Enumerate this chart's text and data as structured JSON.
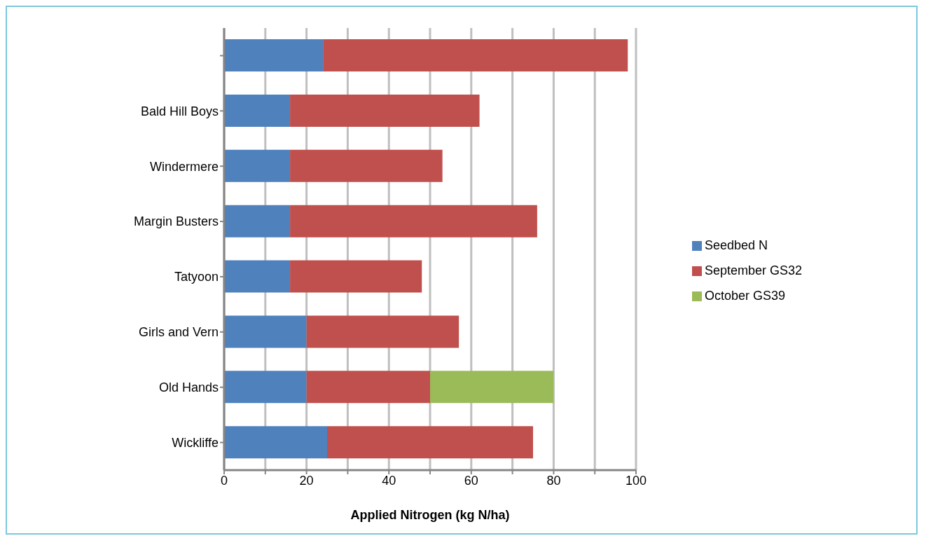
{
  "chart_data": {
    "type": "bar",
    "orientation": "horizontal",
    "stacked": true,
    "xlabel": "Applied Nitrogen (kg N/ha)",
    "categories": [
      null,
      "Bald Hill Boys",
      "Windermere",
      "Margin Busters",
      "Tatyoon",
      "Girls and Vern",
      "Old Hands",
      "Wickliffe"
    ],
    "series": [
      {
        "name": "Seedbed N",
        "color": "#4f81bd",
        "values": [
          24,
          16,
          16,
          16,
          16,
          20,
          20,
          25
        ]
      },
      {
        "name": "September GS32",
        "color": "#c0504d",
        "values": [
          74,
          46,
          37,
          60,
          32,
          37,
          30,
          50
        ]
      },
      {
        "name": "October GS39",
        "color": "#9bbb59",
        "values": [
          null,
          null,
          null,
          null,
          null,
          null,
          30,
          null
        ]
      }
    ],
    "xlim": [
      0,
      100
    ],
    "xticks": [
      0,
      {
        "value": 10,
        "label": null
      },
      20,
      {
        "value": 30,
        "label": null
      },
      40,
      {
        "value": 50,
        "label": null
      },
      60,
      {
        "value": 70,
        "label": null
      },
      80,
      {
        "value": 90,
        "label": null
      },
      100
    ],
    "grid": "x",
    "legend": "right"
  }
}
